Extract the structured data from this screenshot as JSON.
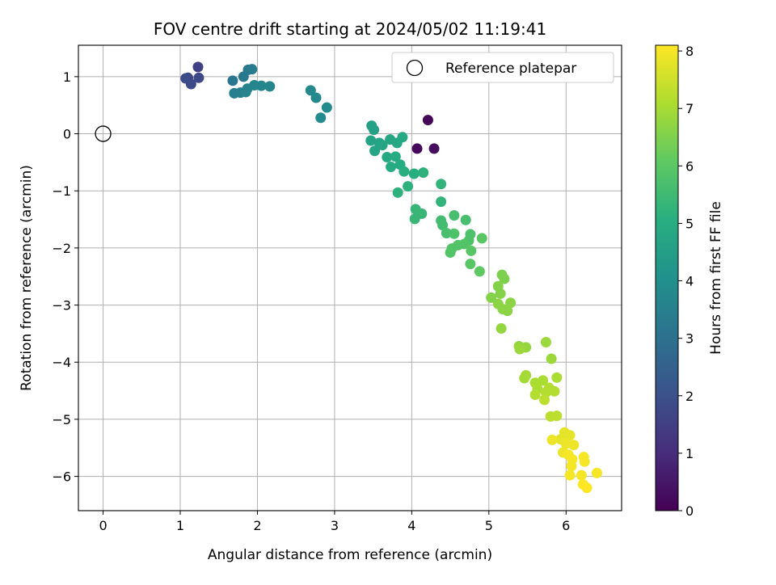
{
  "chart_data": {
    "type": "scatter",
    "title": "FOV centre drift starting at 2024/05/02 11:19:41",
    "xlabel": "Angular distance from reference (arcmin)",
    "ylabel": "Rotation from reference (arcmin)",
    "xlim": [
      -0.32,
      6.72
    ],
    "ylim": [
      -6.6,
      1.55
    ],
    "xticks": [
      0,
      1,
      2,
      3,
      4,
      5,
      6
    ],
    "yticks": [
      1,
      0,
      -1,
      -2,
      -3,
      -4,
      -5,
      -6
    ],
    "grid": true,
    "legend": {
      "placement": "top-right",
      "entries": [
        "Reference platepar"
      ]
    },
    "reference_point": {
      "x": 0,
      "y": 0,
      "label": "Reference platepar"
    },
    "colorbar": {
      "label": "Hours from first FF file",
      "min": 0,
      "max": 8.1,
      "ticks": [
        0,
        1,
        2,
        3,
        4,
        5,
        6,
        7,
        8
      ],
      "colormap": "viridis"
    },
    "points": [
      {
        "x": 4.21,
        "y": 0.24,
        "h": 0.1
      },
      {
        "x": 4.07,
        "y": -0.26,
        "h": 0.2
      },
      {
        "x": 4.29,
        "y": -0.26,
        "h": 0.3
      },
      {
        "x": 1.23,
        "y": 1.17,
        "h": 1.6
      },
      {
        "x": 1.1,
        "y": 0.98,
        "h": 1.7
      },
      {
        "x": 1.14,
        "y": 0.87,
        "h": 1.8
      },
      {
        "x": 1.24,
        "y": 0.98,
        "h": 1.8
      },
      {
        "x": 1.07,
        "y": 0.97,
        "h": 1.9
      },
      {
        "x": 1.68,
        "y": 0.93,
        "h": 3.2
      },
      {
        "x": 1.82,
        "y": 1.0,
        "h": 3.3
      },
      {
        "x": 1.88,
        "y": 1.12,
        "h": 3.3
      },
      {
        "x": 1.93,
        "y": 1.13,
        "h": 3.4
      },
      {
        "x": 1.7,
        "y": 0.71,
        "h": 3.5
      },
      {
        "x": 1.78,
        "y": 0.72,
        "h": 3.5
      },
      {
        "x": 1.85,
        "y": 0.73,
        "h": 3.6
      },
      {
        "x": 1.87,
        "y": 0.79,
        "h": 3.6
      },
      {
        "x": 1.96,
        "y": 0.85,
        "h": 3.7
      },
      {
        "x": 2.05,
        "y": 0.84,
        "h": 3.7
      },
      {
        "x": 2.16,
        "y": 0.83,
        "h": 3.7
      },
      {
        "x": 2.69,
        "y": 0.76,
        "h": 3.8
      },
      {
        "x": 2.76,
        "y": 0.63,
        "h": 3.8
      },
      {
        "x": 2.9,
        "y": 0.46,
        "h": 3.9
      },
      {
        "x": 2.82,
        "y": 0.28,
        "h": 3.9
      },
      {
        "x": 3.48,
        "y": 0.14,
        "h": 4.6
      },
      {
        "x": 3.51,
        "y": 0.07,
        "h": 4.6
      },
      {
        "x": 3.47,
        "y": -0.12,
        "h": 4.7
      },
      {
        "x": 3.58,
        "y": -0.16,
        "h": 4.7
      },
      {
        "x": 3.62,
        "y": -0.2,
        "h": 4.8
      },
      {
        "x": 3.52,
        "y": -0.3,
        "h": 4.8
      },
      {
        "x": 3.72,
        "y": -0.1,
        "h": 4.8
      },
      {
        "x": 3.81,
        "y": -0.16,
        "h": 4.9
      },
      {
        "x": 3.88,
        "y": -0.06,
        "h": 4.9
      },
      {
        "x": 3.68,
        "y": -0.41,
        "h": 4.9
      },
      {
        "x": 3.79,
        "y": -0.4,
        "h": 5.0
      },
      {
        "x": 3.73,
        "y": -0.58,
        "h": 5.0
      },
      {
        "x": 3.85,
        "y": -0.54,
        "h": 5.0
      },
      {
        "x": 3.9,
        "y": -0.66,
        "h": 5.1
      },
      {
        "x": 4.03,
        "y": -0.7,
        "h": 5.1
      },
      {
        "x": 4.15,
        "y": -0.68,
        "h": 5.2
      },
      {
        "x": 3.95,
        "y": -0.92,
        "h": 5.2
      },
      {
        "x": 3.82,
        "y": -1.03,
        "h": 5.2
      },
      {
        "x": 4.38,
        "y": -0.88,
        "h": 5.3
      },
      {
        "x": 4.38,
        "y": -1.19,
        "h": 5.3
      },
      {
        "x": 4.13,
        "y": -1.4,
        "h": 5.4
      },
      {
        "x": 4.04,
        "y": -1.49,
        "h": 5.4
      },
      {
        "x": 4.05,
        "y": -1.32,
        "h": 5.4
      },
      {
        "x": 4.38,
        "y": -1.52,
        "h": 5.6
      },
      {
        "x": 4.4,
        "y": -1.6,
        "h": 5.6
      },
      {
        "x": 4.55,
        "y": -1.43,
        "h": 5.7
      },
      {
        "x": 4.7,
        "y": -1.51,
        "h": 5.7
      },
      {
        "x": 4.45,
        "y": -1.74,
        "h": 5.7
      },
      {
        "x": 4.55,
        "y": -1.75,
        "h": 5.8
      },
      {
        "x": 4.76,
        "y": -1.76,
        "h": 5.8
      },
      {
        "x": 4.74,
        "y": -1.87,
        "h": 5.8
      },
      {
        "x": 4.68,
        "y": -1.93,
        "h": 5.9
      },
      {
        "x": 4.6,
        "y": -1.95,
        "h": 5.9
      },
      {
        "x": 4.52,
        "y": -2.01,
        "h": 5.9
      },
      {
        "x": 4.5,
        "y": -2.08,
        "h": 5.9
      },
      {
        "x": 4.77,
        "y": -2.05,
        "h": 6.0
      },
      {
        "x": 4.91,
        "y": -1.83,
        "h": 6.0
      },
      {
        "x": 4.76,
        "y": -2.28,
        "h": 6.0
      },
      {
        "x": 4.88,
        "y": -2.41,
        "h": 6.1
      },
      {
        "x": 5.17,
        "y": -2.47,
        "h": 6.5
      },
      {
        "x": 5.2,
        "y": -2.54,
        "h": 6.5
      },
      {
        "x": 5.12,
        "y": -2.67,
        "h": 6.6
      },
      {
        "x": 5.15,
        "y": -2.8,
        "h": 6.6
      },
      {
        "x": 5.03,
        "y": -2.87,
        "h": 6.6
      },
      {
        "x": 5.12,
        "y": -2.98,
        "h": 6.7
      },
      {
        "x": 5.28,
        "y": -2.96,
        "h": 6.7
      },
      {
        "x": 5.18,
        "y": -3.07,
        "h": 6.7
      },
      {
        "x": 5.24,
        "y": -3.1,
        "h": 6.7
      },
      {
        "x": 5.16,
        "y": -3.41,
        "h": 6.8
      },
      {
        "x": 5.39,
        "y": -3.72,
        "h": 6.8
      },
      {
        "x": 5.48,
        "y": -3.74,
        "h": 6.8
      },
      {
        "x": 5.4,
        "y": -3.77,
        "h": 6.9
      },
      {
        "x": 5.74,
        "y": -3.65,
        "h": 6.9
      },
      {
        "x": 5.81,
        "y": -3.94,
        "h": 6.9
      },
      {
        "x": 5.48,
        "y": -4.23,
        "h": 7.0
      },
      {
        "x": 5.46,
        "y": -4.28,
        "h": 7.0
      },
      {
        "x": 5.6,
        "y": -4.36,
        "h": 7.1
      },
      {
        "x": 5.7,
        "y": -4.32,
        "h": 7.1
      },
      {
        "x": 5.88,
        "y": -4.27,
        "h": 7.1
      },
      {
        "x": 5.63,
        "y": -4.47,
        "h": 7.1
      },
      {
        "x": 5.6,
        "y": -4.57,
        "h": 7.2
      },
      {
        "x": 5.74,
        "y": -4.53,
        "h": 7.2
      },
      {
        "x": 5.78,
        "y": -4.45,
        "h": 7.2
      },
      {
        "x": 5.85,
        "y": -4.51,
        "h": 7.2
      },
      {
        "x": 5.72,
        "y": -4.66,
        "h": 7.3
      },
      {
        "x": 5.8,
        "y": -4.95,
        "h": 7.3
      },
      {
        "x": 5.88,
        "y": -4.94,
        "h": 7.3
      },
      {
        "x": 5.98,
        "y": -5.23,
        "h": 7.8
      },
      {
        "x": 6.05,
        "y": -5.28,
        "h": 7.8
      },
      {
        "x": 5.93,
        "y": -5.35,
        "h": 7.8
      },
      {
        "x": 5.82,
        "y": -5.36,
        "h": 7.9
      },
      {
        "x": 6.0,
        "y": -5.43,
        "h": 7.9
      },
      {
        "x": 6.1,
        "y": -5.45,
        "h": 7.9
      },
      {
        "x": 5.96,
        "y": -5.58,
        "h": 7.9
      },
      {
        "x": 6.03,
        "y": -5.62,
        "h": 8.0
      },
      {
        "x": 6.08,
        "y": -5.7,
        "h": 8.0
      },
      {
        "x": 6.23,
        "y": -5.66,
        "h": 8.0
      },
      {
        "x": 6.24,
        "y": -5.74,
        "h": 8.0
      },
      {
        "x": 6.07,
        "y": -5.82,
        "h": 8.0
      },
      {
        "x": 6.05,
        "y": -5.98,
        "h": 8.0
      },
      {
        "x": 6.2,
        "y": -5.98,
        "h": 8.0
      },
      {
        "x": 6.4,
        "y": -5.94,
        "h": 8.0
      },
      {
        "x": 6.22,
        "y": -6.14,
        "h": 8.1
      },
      {
        "x": 6.27,
        "y": -6.2,
        "h": 8.1
      }
    ]
  }
}
